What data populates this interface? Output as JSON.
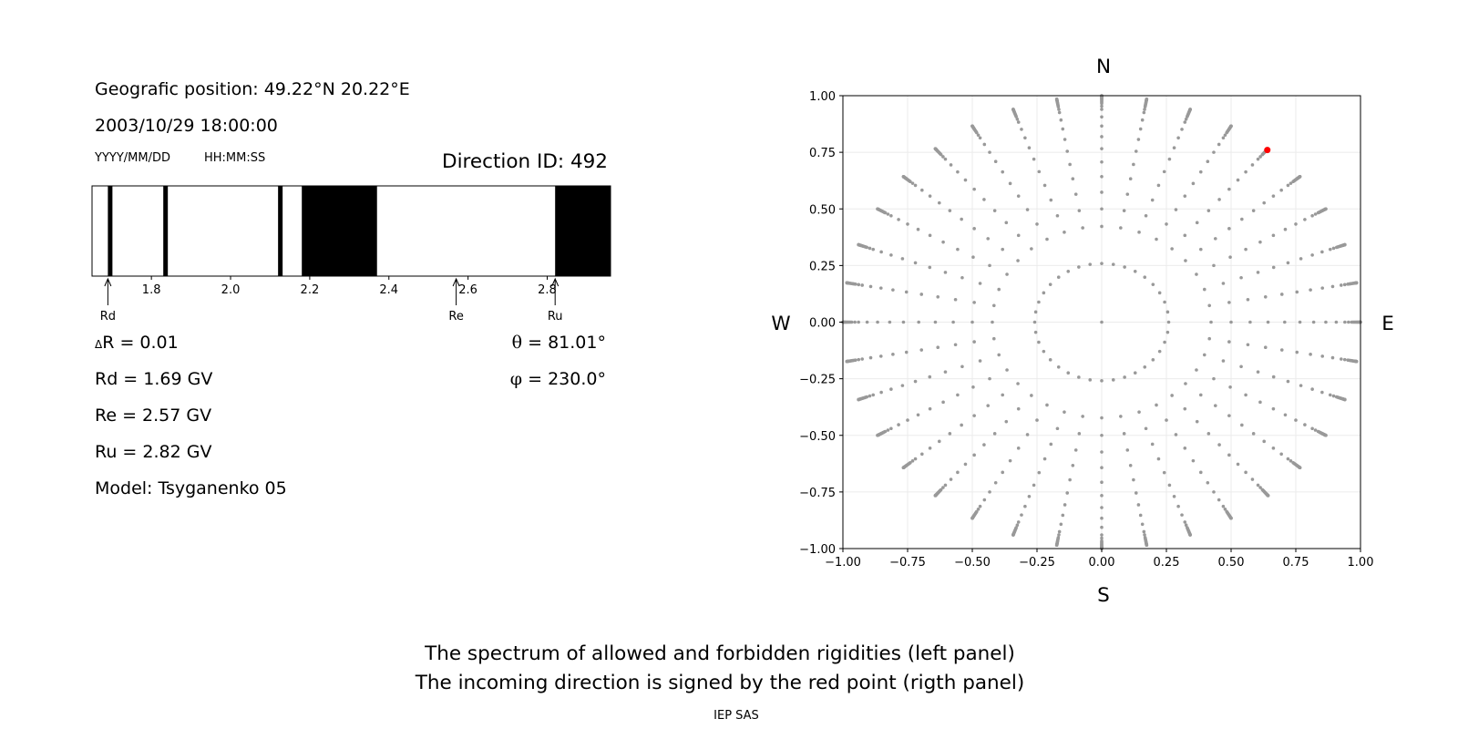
{
  "left_panel": {
    "position_text": "Geografic position: 49.22°N 20.22°E",
    "datetime_text": "2003/10/29 18:00:00",
    "date_format_label": "YYYY/MM/DD",
    "time_format_label": "HH:MM:SS",
    "direction_id_text": "Direction ID: 492",
    "delta_r_symbol": "Δ",
    "delta_r_text": "R = 0.01",
    "rd_text": "Rd = 1.69 GV",
    "re_text": "Re = 2.57 GV",
    "ru_text": "Ru = 2.82 GV",
    "model_text": "Model: Tsyganenko 05",
    "theta_symbol": "θ",
    "theta_text": " = 81.01°",
    "phi_symbol": "φ",
    "phi_text": " = 230.0°"
  },
  "right_panel": {
    "north_label": "N",
    "south_label": "S",
    "west_label": "W",
    "east_label": "E"
  },
  "footer": {
    "line1": "The spectrum of allowed and forbidden rigidities (left panel)",
    "line2": "The incoming direction is signed by the red point (rigth panel)",
    "credit": "IEP SAS"
  },
  "chart_data": [
    {
      "type": "bar",
      "subtype": "rigidity-spectrum",
      "xlim": [
        1.65,
        2.96
      ],
      "xticks": [
        1.8,
        2.0,
        2.2,
        2.4,
        2.6,
        2.8
      ],
      "forbidden_intervals": [
        [
          1.69,
          1.7
        ],
        [
          1.83,
          1.84
        ],
        [
          2.12,
          2.13
        ],
        [
          2.18,
          2.37
        ],
        [
          2.82,
          2.96
        ]
      ],
      "markers": [
        {
          "name": "Rd",
          "value": 1.69
        },
        {
          "name": "Re",
          "value": 2.57
        },
        {
          "name": "Ru",
          "value": 2.82
        }
      ],
      "colors": {
        "forbidden": "#000000",
        "allowed": "#ffffff"
      }
    },
    {
      "type": "scatter",
      "subtype": "direction-grid",
      "xlim": [
        -1.0,
        1.0
      ],
      "ylim": [
        -1.0,
        1.0
      ],
      "xticks": [
        "−1.00",
        "−0.75",
        "−0.50",
        "−0.25",
        "0.00",
        "0.25",
        "0.50",
        "0.75",
        "1.00"
      ],
      "yticks": [
        "1.00",
        "0.75",
        "0.50",
        "0.25",
        "0.00",
        "−0.25",
        "−0.50",
        "−0.75",
        "−1.00"
      ],
      "grid": true,
      "zenith_angles_deg": [
        15,
        25,
        30,
        35,
        40,
        45,
        50,
        55,
        60,
        65,
        70,
        72.5,
        75,
        76,
        77,
        78,
        79,
        80,
        81,
        82,
        83,
        84,
        85,
        86,
        87,
        88,
        89,
        90
      ],
      "azimuths_deg": [
        0,
        10,
        20,
        30,
        40,
        50,
        60,
        70,
        80,
        90,
        100,
        110,
        120,
        130,
        140,
        150,
        160,
        170,
        180,
        190,
        200,
        210,
        220,
        230,
        240,
        250,
        260,
        270,
        280,
        290,
        300,
        310,
        320,
        330,
        340,
        350
      ],
      "highlight_point": {
        "x": 0.64,
        "y": 0.76,
        "theta_deg": 81.01,
        "phi_deg": 230.0
      },
      "colors": {
        "points": "#999999",
        "highlight": "#ff0000"
      }
    }
  ]
}
